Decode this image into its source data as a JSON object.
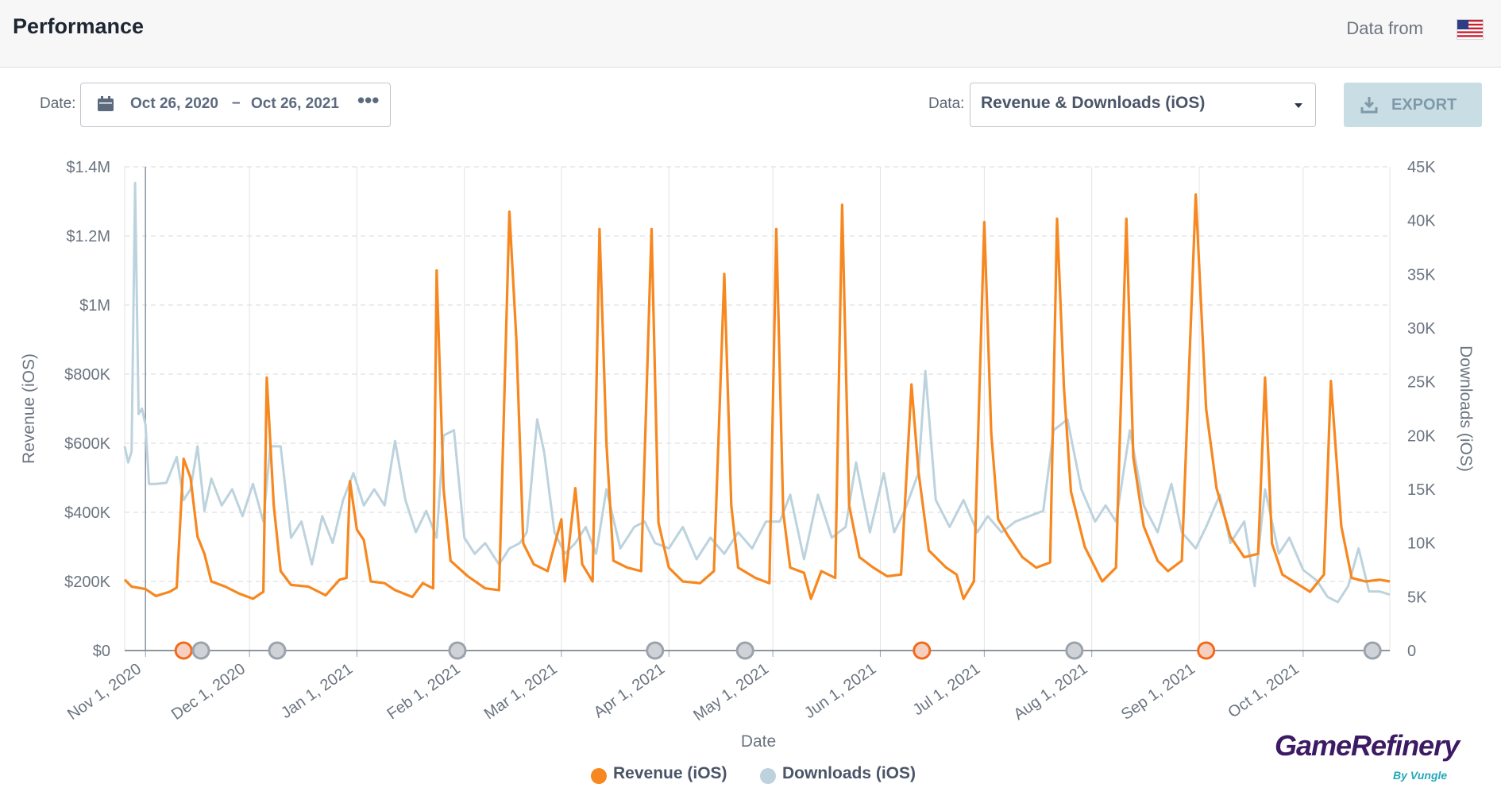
{
  "header": {
    "title": "Performance",
    "data_from": "Data from",
    "flag_icon": "us-flag-icon"
  },
  "filters": {
    "date_label": "Date:",
    "date_start": "Oct 26, 2020",
    "date_sep": "–",
    "date_end": "Oct 26, 2021",
    "more_label": "•••",
    "data_label": "Data:",
    "data_value": "Revenue & Downloads (iOS)",
    "export_label": "EXPORT"
  },
  "legend": {
    "revenue": "Revenue (iOS)",
    "downloads": "Downloads (iOS)"
  },
  "brand": {
    "name": "GameRefinery",
    "sub": "By Vungle"
  },
  "colors": {
    "revenue": "#f7871f",
    "downloads": "#bcd3de",
    "accent": "#c9dde5"
  },
  "chart_data": {
    "type": "line",
    "xlabel": "Date",
    "y_left_label": "Revenue (iOS)",
    "y_right_label": "Downloads (iOS)",
    "y_left_ticks": [
      "$0",
      "$200K",
      "$400K",
      "$600K",
      "$800K",
      "$1M",
      "$1.2M",
      "$1.4M"
    ],
    "y_right_ticks": [
      "0",
      "5K",
      "10K",
      "15K",
      "20K",
      "25K",
      "30K",
      "35K",
      "40K",
      "45K"
    ],
    "x_ticks": [
      "Nov 1, 2020",
      "Dec 1, 2020",
      "Jan 1, 2021",
      "Feb 1, 2021",
      "Mar 1, 2021",
      "Apr 1, 2021",
      "May 1, 2021",
      "Jun 1, 2021",
      "Jul 1, 2021",
      "Aug 1, 2021",
      "Sep 1, 2021",
      "Oct 1, 2021"
    ],
    "ylim_left": [
      0,
      1400000
    ],
    "ylim_right": [
      0,
      45000
    ],
    "x_range": [
      "2020-10-26",
      "2021-10-26"
    ],
    "grid": true,
    "legend_position": "bottom-center",
    "series": [
      {
        "name": "Revenue (iOS)",
        "axis": "left",
        "points": [
          [
            "2020-10-26",
            205000
          ],
          [
            "2020-10-28",
            185000
          ],
          [
            "2020-11-01",
            178000
          ],
          [
            "2020-11-04",
            158000
          ],
          [
            "2020-11-08",
            170000
          ],
          [
            "2020-11-10",
            182000
          ],
          [
            "2020-11-12",
            555000
          ],
          [
            "2020-11-14",
            500000
          ],
          [
            "2020-11-16",
            330000
          ],
          [
            "2020-11-18",
            280000
          ],
          [
            "2020-11-20",
            200000
          ],
          [
            "2020-11-24",
            185000
          ],
          [
            "2020-11-28",
            165000
          ],
          [
            "2020-12-02",
            150000
          ],
          [
            "2020-12-05",
            170000
          ],
          [
            "2020-12-06",
            790000
          ],
          [
            "2020-12-08",
            420000
          ],
          [
            "2020-12-10",
            230000
          ],
          [
            "2020-12-13",
            190000
          ],
          [
            "2020-12-18",
            185000
          ],
          [
            "2020-12-23",
            160000
          ],
          [
            "2020-12-27",
            205000
          ],
          [
            "2020-12-29",
            210000
          ],
          [
            "2020-12-30",
            490000
          ],
          [
            "2021-01-01",
            350000
          ],
          [
            "2021-01-03",
            320000
          ],
          [
            "2021-01-05",
            200000
          ],
          [
            "2021-01-09",
            195000
          ],
          [
            "2021-01-12",
            175000
          ],
          [
            "2021-01-17",
            155000
          ],
          [
            "2021-01-20",
            195000
          ],
          [
            "2021-01-23",
            180000
          ],
          [
            "2021-01-24",
            1100000
          ],
          [
            "2021-01-26",
            470000
          ],
          [
            "2021-01-28",
            260000
          ],
          [
            "2021-02-02",
            215000
          ],
          [
            "2021-02-07",
            180000
          ],
          [
            "2021-02-11",
            175000
          ],
          [
            "2021-02-14",
            1270000
          ],
          [
            "2021-02-16",
            900000
          ],
          [
            "2021-02-18",
            310000
          ],
          [
            "2021-02-21",
            250000
          ],
          [
            "2021-02-25",
            230000
          ],
          [
            "2021-03-01",
            380000
          ],
          [
            "2021-03-02",
            200000
          ],
          [
            "2021-03-05",
            470000
          ],
          [
            "2021-03-07",
            250000
          ],
          [
            "2021-03-10",
            200000
          ],
          [
            "2021-03-12",
            1220000
          ],
          [
            "2021-03-14",
            600000
          ],
          [
            "2021-03-16",
            260000
          ],
          [
            "2021-03-20",
            240000
          ],
          [
            "2021-03-24",
            230000
          ],
          [
            "2021-03-27",
            1220000
          ],
          [
            "2021-03-29",
            370000
          ],
          [
            "2021-04-01",
            240000
          ],
          [
            "2021-04-05",
            200000
          ],
          [
            "2021-04-10",
            195000
          ],
          [
            "2021-04-14",
            230000
          ],
          [
            "2021-04-17",
            1090000
          ],
          [
            "2021-04-19",
            420000
          ],
          [
            "2021-04-21",
            240000
          ],
          [
            "2021-04-26",
            210000
          ],
          [
            "2021-04-30",
            195000
          ],
          [
            "2021-05-02",
            1220000
          ],
          [
            "2021-05-04",
            400000
          ],
          [
            "2021-05-06",
            240000
          ],
          [
            "2021-05-10",
            225000
          ],
          [
            "2021-05-12",
            150000
          ],
          [
            "2021-05-15",
            230000
          ],
          [
            "2021-05-19",
            210000
          ],
          [
            "2021-05-21",
            1290000
          ],
          [
            "2021-05-23",
            420000
          ],
          [
            "2021-05-26",
            270000
          ],
          [
            "2021-05-30",
            240000
          ],
          [
            "2021-06-03",
            215000
          ],
          [
            "2021-06-07",
            220000
          ],
          [
            "2021-06-10",
            770000
          ],
          [
            "2021-06-12",
            520000
          ],
          [
            "2021-06-15",
            290000
          ],
          [
            "2021-06-20",
            240000
          ],
          [
            "2021-06-23",
            220000
          ],
          [
            "2021-06-25",
            150000
          ],
          [
            "2021-06-28",
            200000
          ],
          [
            "2021-07-01",
            1240000
          ],
          [
            "2021-07-03",
            630000
          ],
          [
            "2021-07-05",
            380000
          ],
          [
            "2021-07-08",
            330000
          ],
          [
            "2021-07-12",
            270000
          ],
          [
            "2021-07-16",
            240000
          ],
          [
            "2021-07-20",
            255000
          ],
          [
            "2021-07-22",
            1250000
          ],
          [
            "2021-07-24",
            760000
          ],
          [
            "2021-07-26",
            460000
          ],
          [
            "2021-07-30",
            300000
          ],
          [
            "2021-08-04",
            200000
          ],
          [
            "2021-08-08",
            240000
          ],
          [
            "2021-08-11",
            1250000
          ],
          [
            "2021-08-13",
            560000
          ],
          [
            "2021-08-16",
            360000
          ],
          [
            "2021-08-20",
            260000
          ],
          [
            "2021-08-23",
            230000
          ],
          [
            "2021-08-27",
            260000
          ],
          [
            "2021-08-31",
            1320000
          ],
          [
            "2021-09-03",
            700000
          ],
          [
            "2021-09-06",
            470000
          ],
          [
            "2021-09-10",
            330000
          ],
          [
            "2021-09-14",
            270000
          ],
          [
            "2021-09-18",
            280000
          ],
          [
            "2021-09-20",
            790000
          ],
          [
            "2021-09-22",
            310000
          ],
          [
            "2021-09-25",
            220000
          ],
          [
            "2021-09-29",
            195000
          ],
          [
            "2021-10-03",
            170000
          ],
          [
            "2021-10-07",
            220000
          ],
          [
            "2021-10-09",
            780000
          ],
          [
            "2021-10-12",
            360000
          ],
          [
            "2021-10-15",
            210000
          ],
          [
            "2021-10-19",
            200000
          ],
          [
            "2021-10-23",
            205000
          ],
          [
            "2021-10-26",
            200000
          ]
        ]
      },
      {
        "name": "Downloads (iOS)",
        "axis": "right",
        "points": [
          [
            "2020-10-26",
            19000
          ],
          [
            "2020-10-27",
            17500
          ],
          [
            "2020-10-28",
            18500
          ],
          [
            "2020-10-29",
            43500
          ],
          [
            "2020-10-30",
            22000
          ],
          [
            "2020-10-31",
            22500
          ],
          [
            "2020-11-01",
            21000
          ],
          [
            "2020-11-02",
            15500
          ],
          [
            "2020-11-04",
            15500
          ],
          [
            "2020-11-07",
            15600
          ],
          [
            "2020-11-10",
            18000
          ],
          [
            "2020-11-12",
            14000
          ],
          [
            "2020-11-14",
            15000
          ],
          [
            "2020-11-16",
            19000
          ],
          [
            "2020-11-18",
            13000
          ],
          [
            "2020-11-20",
            16000
          ],
          [
            "2020-11-23",
            13500
          ],
          [
            "2020-11-26",
            15000
          ],
          [
            "2020-11-29",
            12500
          ],
          [
            "2020-12-02",
            15500
          ],
          [
            "2020-12-05",
            12000
          ],
          [
            "2020-12-07",
            19000
          ],
          [
            "2020-12-10",
            19000
          ],
          [
            "2020-12-13",
            10500
          ],
          [
            "2020-12-16",
            12000
          ],
          [
            "2020-12-19",
            8000
          ],
          [
            "2020-12-22",
            12500
          ],
          [
            "2020-12-25",
            10000
          ],
          [
            "2020-12-28",
            14000
          ],
          [
            "2020-12-31",
            16500
          ],
          [
            "2021-01-03",
            13500
          ],
          [
            "2021-01-06",
            15000
          ],
          [
            "2021-01-09",
            13500
          ],
          [
            "2021-01-12",
            19500
          ],
          [
            "2021-01-15",
            14000
          ],
          [
            "2021-01-18",
            11000
          ],
          [
            "2021-01-21",
            13000
          ],
          [
            "2021-01-24",
            10500
          ],
          [
            "2021-01-26",
            20000
          ],
          [
            "2021-01-29",
            20500
          ],
          [
            "2021-02-01",
            10500
          ],
          [
            "2021-02-04",
            9000
          ],
          [
            "2021-02-07",
            10000
          ],
          [
            "2021-02-11",
            8000
          ],
          [
            "2021-02-14",
            9500
          ],
          [
            "2021-02-17",
            10000
          ],
          [
            "2021-02-19",
            11000
          ],
          [
            "2021-02-22",
            21500
          ],
          [
            "2021-02-24",
            18500
          ],
          [
            "2021-02-27",
            11000
          ],
          [
            "2021-03-02",
            9000
          ],
          [
            "2021-03-05",
            10000
          ],
          [
            "2021-03-08",
            11500
          ],
          [
            "2021-03-11",
            9000
          ],
          [
            "2021-03-14",
            15000
          ],
          [
            "2021-03-18",
            9500
          ],
          [
            "2021-03-22",
            11500
          ],
          [
            "2021-03-25",
            12000
          ],
          [
            "2021-03-28",
            10000
          ],
          [
            "2021-04-01",
            9500
          ],
          [
            "2021-04-05",
            11500
          ],
          [
            "2021-04-09",
            8500
          ],
          [
            "2021-04-13",
            10500
          ],
          [
            "2021-04-17",
            9000
          ],
          [
            "2021-04-21",
            11000
          ],
          [
            "2021-04-25",
            9500
          ],
          [
            "2021-04-29",
            12000
          ],
          [
            "2021-05-03",
            12000
          ],
          [
            "2021-05-06",
            14500
          ],
          [
            "2021-05-10",
            8500
          ],
          [
            "2021-05-14",
            14500
          ],
          [
            "2021-05-18",
            10500
          ],
          [
            "2021-05-22",
            11500
          ],
          [
            "2021-05-25",
            17500
          ],
          [
            "2021-05-29",
            11000
          ],
          [
            "2021-06-02",
            16500
          ],
          [
            "2021-06-05",
            11000
          ],
          [
            "2021-06-08",
            13000
          ],
          [
            "2021-06-12",
            16500
          ],
          [
            "2021-06-14",
            26000
          ],
          [
            "2021-06-17",
            14000
          ],
          [
            "2021-06-21",
            11500
          ],
          [
            "2021-06-25",
            14000
          ],
          [
            "2021-06-29",
            11000
          ],
          [
            "2021-07-02",
            12500
          ],
          [
            "2021-07-06",
            11000
          ],
          [
            "2021-07-10",
            12000
          ],
          [
            "2021-07-14",
            12500
          ],
          [
            "2021-07-18",
            13000
          ],
          [
            "2021-07-21",
            20500
          ],
          [
            "2021-07-25",
            21500
          ],
          [
            "2021-07-29",
            15000
          ],
          [
            "2021-08-02",
            12000
          ],
          [
            "2021-08-05",
            13500
          ],
          [
            "2021-08-08",
            12000
          ],
          [
            "2021-08-12",
            20500
          ],
          [
            "2021-08-16",
            13500
          ],
          [
            "2021-08-20",
            11000
          ],
          [
            "2021-08-24",
            15500
          ],
          [
            "2021-08-27",
            11000
          ],
          [
            "2021-08-31",
            9500
          ],
          [
            "2021-09-03",
            11500
          ],
          [
            "2021-09-07",
            14500
          ],
          [
            "2021-09-10",
            10000
          ],
          [
            "2021-09-14",
            12000
          ],
          [
            "2021-09-17",
            6000
          ],
          [
            "2021-09-20",
            15000
          ],
          [
            "2021-09-24",
            9000
          ],
          [
            "2021-09-27",
            10500
          ],
          [
            "2021-10-01",
            7500
          ],
          [
            "2021-10-05",
            6500
          ],
          [
            "2021-10-08",
            5000
          ],
          [
            "2021-10-11",
            4500
          ],
          [
            "2021-10-14",
            6000
          ],
          [
            "2021-10-17",
            9500
          ],
          [
            "2021-10-20",
            5500
          ],
          [
            "2021-10-23",
            5500
          ],
          [
            "2021-10-26",
            5200
          ]
        ]
      }
    ],
    "markers": [
      {
        "date": "2020-11-12",
        "type": "revenue"
      },
      {
        "date": "2020-11-17",
        "type": "downloads"
      },
      {
        "date": "2020-12-09",
        "type": "downloads"
      },
      {
        "date": "2021-01-30",
        "type": "downloads"
      },
      {
        "date": "2021-03-28",
        "type": "downloads"
      },
      {
        "date": "2021-04-23",
        "type": "downloads"
      },
      {
        "date": "2021-06-13",
        "type": "revenue"
      },
      {
        "date": "2021-07-27",
        "type": "downloads"
      },
      {
        "date": "2021-09-03",
        "type": "revenue"
      },
      {
        "date": "2021-10-21",
        "type": "downloads"
      }
    ]
  }
}
